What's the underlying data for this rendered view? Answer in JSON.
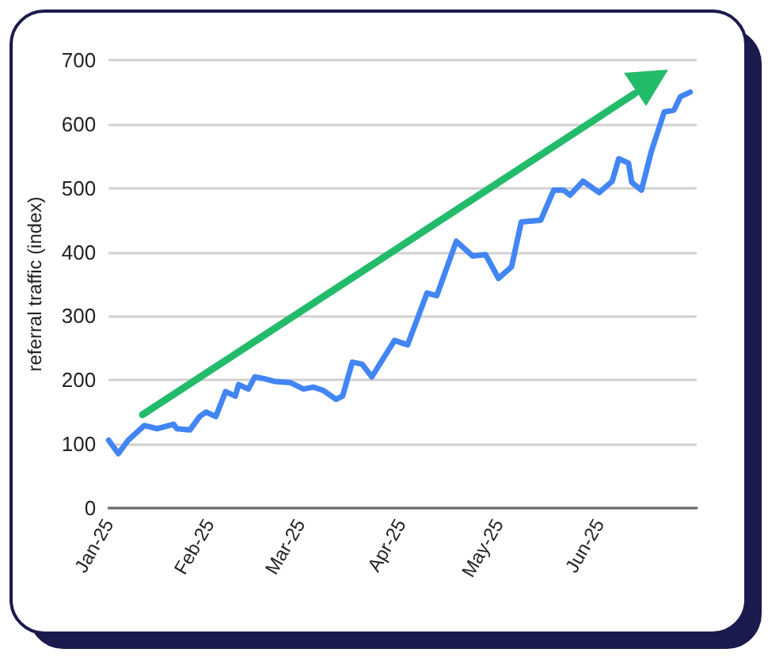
{
  "chart_data": {
    "type": "line",
    "ylabel": "referral traffic (index)",
    "x": [
      "2025-01-01",
      "2025-01-04",
      "2025-01-07",
      "2025-01-12",
      "2025-01-16",
      "2025-01-21",
      "2025-01-22",
      "2025-01-26",
      "2025-01-29",
      "2025-01-31",
      "2025-02-03",
      "2025-02-06",
      "2025-02-09",
      "2025-02-10",
      "2025-02-13",
      "2025-02-15",
      "2025-02-18",
      "2025-02-21",
      "2025-02-26",
      "2025-03-02",
      "2025-03-05",
      "2025-03-08",
      "2025-03-12",
      "2025-03-14",
      "2025-03-17",
      "2025-03-20",
      "2025-03-23",
      "2025-03-30",
      "2025-04-03",
      "2025-04-09",
      "2025-04-12",
      "2025-04-18",
      "2025-04-23",
      "2025-04-27",
      "2025-05-01",
      "2025-05-05",
      "2025-05-08",
      "2025-05-14",
      "2025-05-18",
      "2025-05-21",
      "2025-05-23",
      "2025-05-27",
      "2025-06-01",
      "2025-06-05",
      "2025-06-07",
      "2025-06-10",
      "2025-06-11",
      "2025-06-14",
      "2025-06-17",
      "2025-06-21",
      "2025-06-24",
      "2025-06-26",
      "2025-06-29"
    ],
    "series": [
      {
        "color": "#4285f4",
        "values": [
          106,
          85,
          106,
          129,
          124,
          131,
          124,
          122,
          143,
          150,
          143,
          182,
          175,
          193,
          186,
          205,
          202,
          198,
          196,
          186,
          189,
          184,
          170,
          175,
          228,
          225,
          205,
          262,
          255,
          336,
          332,
          417,
          394,
          396,
          359,
          377,
          447,
          450,
          497,
          497,
          489,
          511,
          493,
          511,
          546,
          539,
          509,
          497,
          557,
          619,
          622,
          643,
          650
        ]
      }
    ],
    "xlim": [
      "2025-01-01",
      "2025-07-01"
    ],
    "xticks": [
      {
        "value": "2025-01-01",
        "label": "Jan-25"
      },
      {
        "value": "2025-02-01",
        "label": "Feb-25"
      },
      {
        "value": "2025-03-01",
        "label": "Mar-25"
      },
      {
        "value": "2025-04-01",
        "label": "Apr-25"
      },
      {
        "value": "2025-05-01",
        "label": "May-25"
      },
      {
        "value": "2025-06-01",
        "label": "Jun-25"
      }
    ],
    "ylim": [
      0,
      700
    ],
    "yticks": [
      0,
      100,
      200,
      300,
      400,
      500,
      600,
      700
    ],
    "grid": "y",
    "marker": "none",
    "line_style": "solid"
  }
}
